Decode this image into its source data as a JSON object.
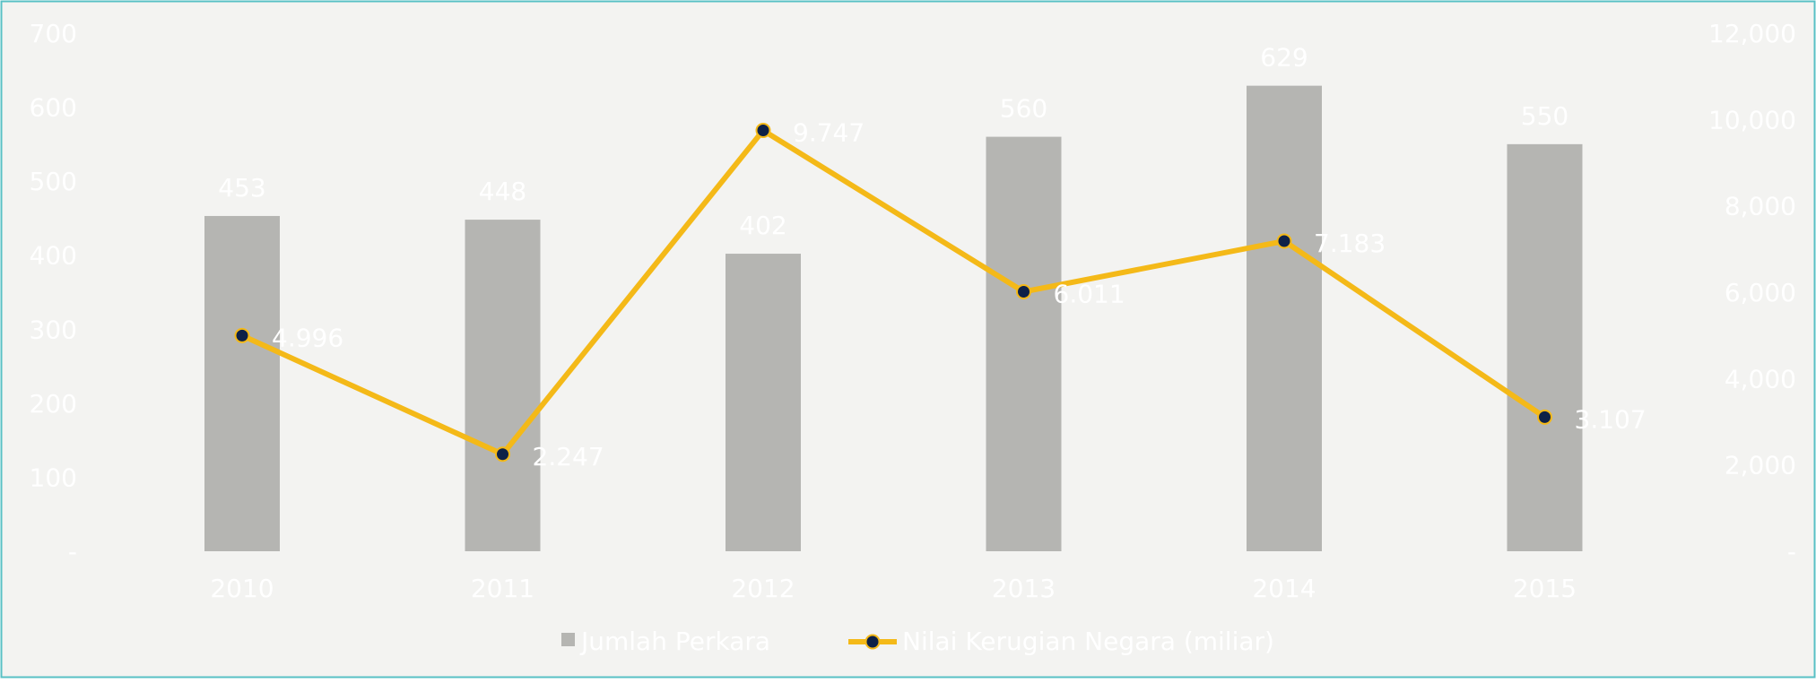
{
  "colors": {
    "background": "#f3f3f1",
    "border": "#58c0c5",
    "bar": "#b5b5b2",
    "line": "#f4b918",
    "marker_fill": "#0e2147",
    "text": "#ffffff"
  },
  "chart_data": {
    "type": "bar",
    "categories": [
      "2010",
      "2011",
      "2012",
      "2013",
      "2014",
      "2015"
    ],
    "series": [
      {
        "name": "Jumlah Perkara",
        "type": "bar",
        "axis": "left",
        "values": [
          453,
          448,
          402,
          560,
          629,
          550
        ],
        "labels": [
          "453",
          "448",
          "402",
          "560",
          "629",
          "550"
        ]
      },
      {
        "name": "Nilai Kerugian Negara (miliar)",
        "type": "line",
        "axis": "right",
        "values": [
          4996,
          2247,
          9747,
          6011,
          7183,
          3107
        ],
        "labels": [
          "4.996",
          "2.247",
          "9.747",
          "6.011",
          "7.183",
          "3.107"
        ]
      }
    ],
    "y_left": {
      "range": [
        0,
        700
      ],
      "ticks": [
        0,
        100,
        200,
        300,
        400,
        500,
        600,
        700
      ],
      "tick_labels": [
        "-",
        "100",
        "200",
        "300",
        "400",
        "500",
        "600",
        "700"
      ]
    },
    "y_right": {
      "range": [
        0,
        12000
      ],
      "ticks": [
        0,
        2000,
        4000,
        6000,
        8000,
        10000,
        12000
      ],
      "tick_labels": [
        "-",
        "2,000",
        "4,000",
        "6,000",
        "8,000",
        "10,000",
        "12,000"
      ]
    },
    "legend": {
      "position": "bottom",
      "items": [
        "Jumlah Perkara",
        "Nilai Kerugian Negara (miliar)"
      ]
    },
    "grid": false
  }
}
